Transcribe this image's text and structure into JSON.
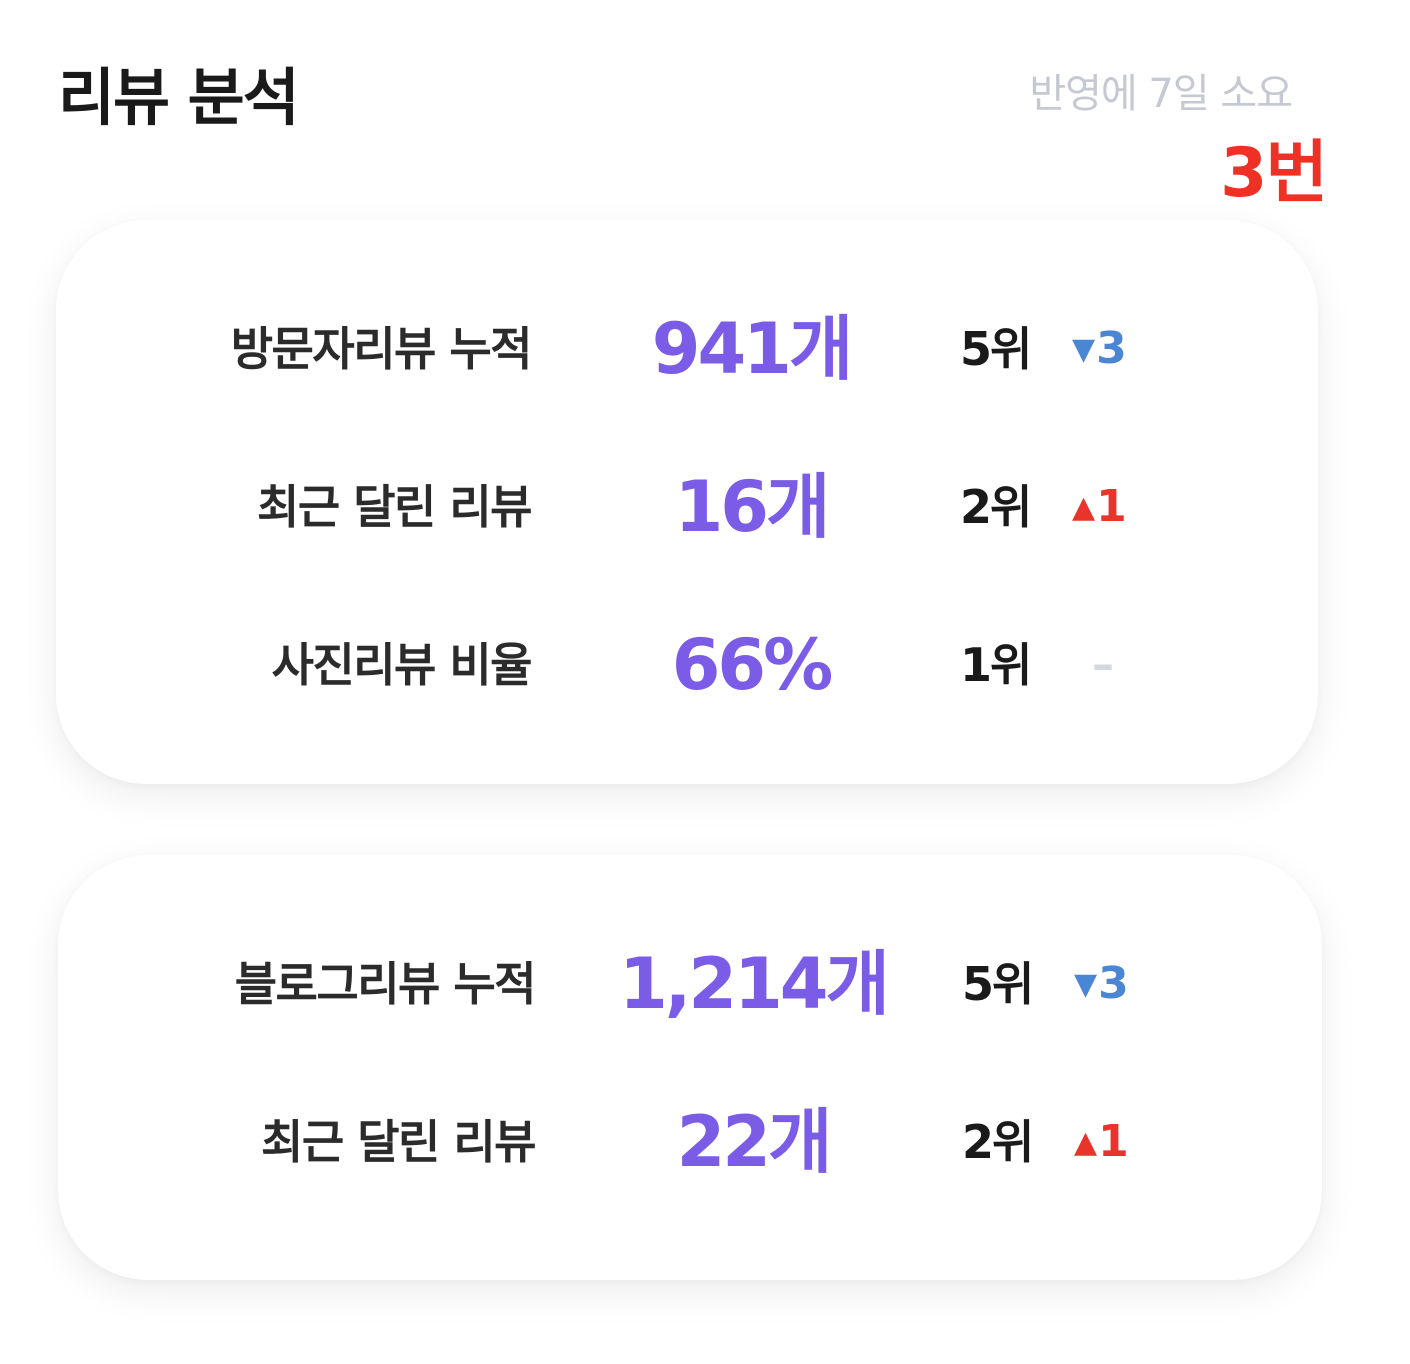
{
  "header": {
    "title": "리뷰 분석",
    "update_note": "반영에 7일 소요",
    "annotation": "3번"
  },
  "visitor_reviews": {
    "rows": [
      {
        "label": "방문자리뷰 누적",
        "value": "941개",
        "rank": "5위",
        "change_icon": "▼",
        "change_value": "3",
        "change_direction": "down"
      },
      {
        "label": "최근 달린 리뷰",
        "value": "16개",
        "rank": "2위",
        "change_icon": "▲",
        "change_value": "1",
        "change_direction": "up"
      },
      {
        "label": "사진리뷰 비율",
        "value": "66%",
        "rank": "1위",
        "change_value": "–",
        "change_direction": "none"
      }
    ]
  },
  "blog_reviews": {
    "rows": [
      {
        "label": "블로그리뷰 누적",
        "value": "1,214개",
        "rank": "5위",
        "change_icon": "▼",
        "change_value": "3",
        "change_direction": "down"
      },
      {
        "label": "최근 달린 리뷰",
        "value": "22개",
        "rank": "2위",
        "change_icon": "▲",
        "change_value": "1",
        "change_direction": "up"
      }
    ]
  },
  "colors": {
    "accent_value": "#7b5ce6",
    "rank_down": "#4a86d4",
    "rank_up": "#e8342b",
    "annotation_red": "#ee3124",
    "muted_text": "#c6c9d3"
  }
}
